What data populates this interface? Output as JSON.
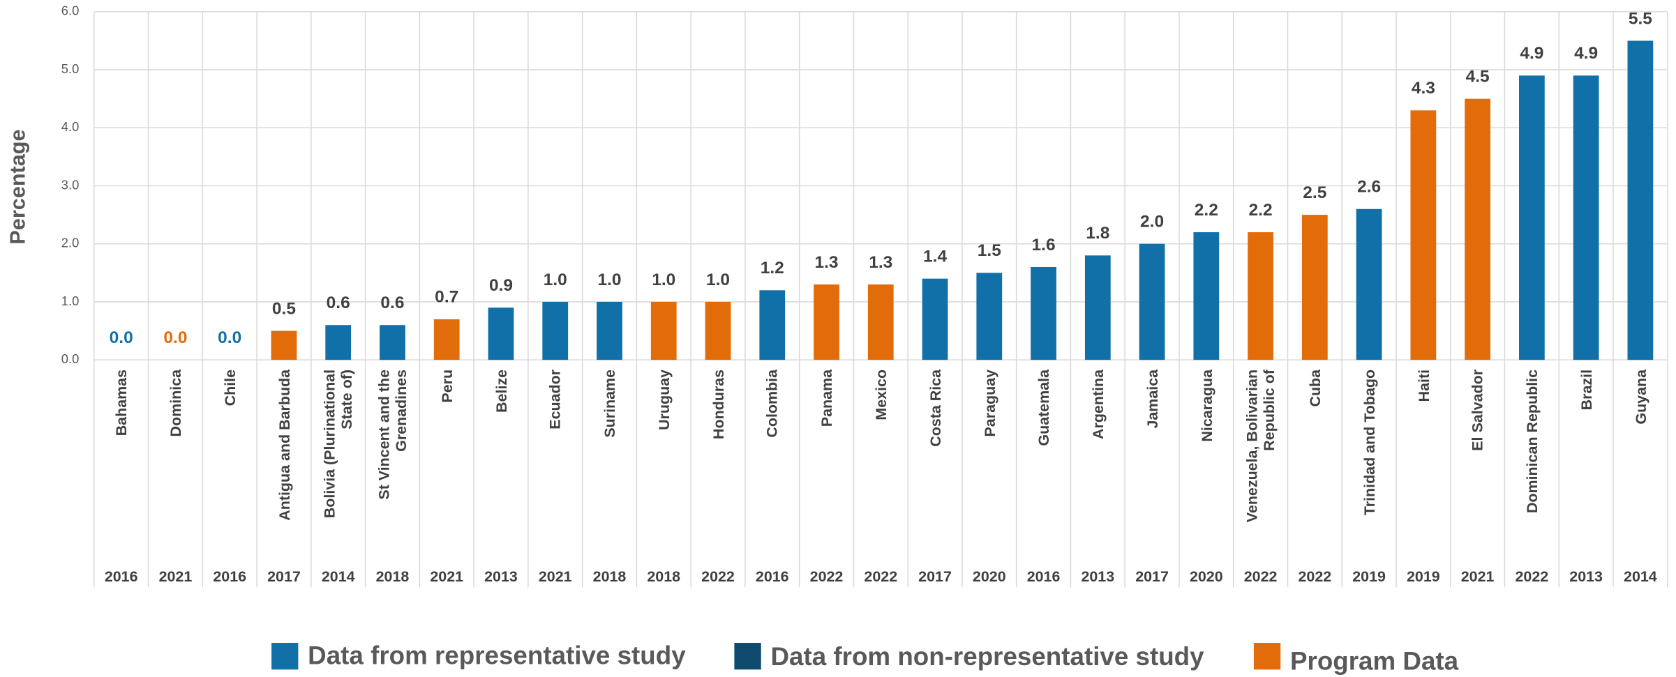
{
  "chart_data": {
    "type": "bar",
    "y_axis_label": "Percentage",
    "categories": [
      "Bahamas",
      "Dominica",
      "Chile",
      "Antigua and Barbuda",
      "Bolivia (Plurinational State of)",
      "St Vincent and the Grenadines",
      "Peru",
      "Belize",
      "Ecuador",
      "Suriname",
      "Uruguay",
      "Honduras",
      "Colombia",
      "Panama",
      "Mexico",
      "Costa Rica",
      "Paraguay",
      "Guatemala",
      "Argentina",
      "Jamaica",
      "Nicaragua",
      "Venezuela, Bolivarian Republic of",
      "Cuba",
      "Trinidad and Tobago",
      "Haiti",
      "El Salvador",
      "Dominican Republic",
      "Brazil",
      "Guyana"
    ],
    "years": [
      "2016",
      "2021",
      "2016",
      "2017",
      "2014",
      "2018",
      "2021",
      "2013",
      "2021",
      "2018",
      "2018",
      "2022",
      "2016",
      "2022",
      "2022",
      "2017",
      "2020",
      "2016",
      "2013",
      "2017",
      "2020",
      "2022",
      "2022",
      "2019",
      "2019",
      "2021",
      "2022",
      "2013",
      "2014"
    ],
    "values": [
      0,
      0,
      0,
      0.5,
      0.6,
      0.6,
      0.7,
      0.9,
      1,
      1,
      1,
      1,
      1.2,
      1.3,
      1.3,
      1.4,
      1.5,
      1.6,
      1.8,
      2,
      2.2,
      2.2,
      2.5,
      2.6,
      4.3,
      4.5,
      4.9,
      4.9,
      5.5
    ],
    "value_labels": [
      "0.0",
      "0.0",
      "0.0",
      "0.5",
      "0.6",
      "0.6",
      "0.7",
      "0.9",
      "1.0",
      "1.0",
      "1.0",
      "1.0",
      "1.2",
      "1.3",
      "1.3",
      "1.4",
      "1.5",
      "1.6",
      "1.8",
      "2.0",
      "2.2",
      "2.2",
      "2.5",
      "2.6",
      "4.3",
      "4.5",
      "4.9",
      "4.9",
      "5.5"
    ],
    "colors": [
      "#1170a8",
      "#e36c0a",
      "#1170a8",
      "#e36c0a",
      "#1170a8",
      "#1170a8",
      "#e36c0a",
      "#1170a8",
      "#1170a8",
      "#1170a8",
      "#e36c0a",
      "#e36c0a",
      "#1170a8",
      "#e36c0a",
      "#e36c0a",
      "#1170a8",
      "#1170a8",
      "#1170a8",
      "#1170a8",
      "#1170a8",
      "#1170a8",
      "#e36c0a",
      "#e36c0a",
      "#1170a8",
      "#e36c0a",
      "#e36c0a",
      "#1170a8",
      "#1170a8",
      "#1170a8"
    ],
    "legend": [
      {
        "name": "Data from representative study",
        "color": "#1170a8"
      },
      {
        "name": "Data from non-representative study",
        "color": "#0e4a6d"
      },
      {
        "name": "Program Data",
        "color": "#e36c0a"
      }
    ],
    "ylim": [
      0,
      6
    ],
    "yticks": [
      {
        "value": 0,
        "label": "0.0"
      },
      {
        "value": 1,
        "label": "1.0"
      },
      {
        "value": 2,
        "label": "2.0"
      },
      {
        "value": 3,
        "label": "3.0"
      },
      {
        "value": 4,
        "label": "4.0"
      },
      {
        "value": 5,
        "label": "5.0"
      },
      {
        "value": 6,
        "label": "6.0"
      }
    ],
    "grid": true
  }
}
